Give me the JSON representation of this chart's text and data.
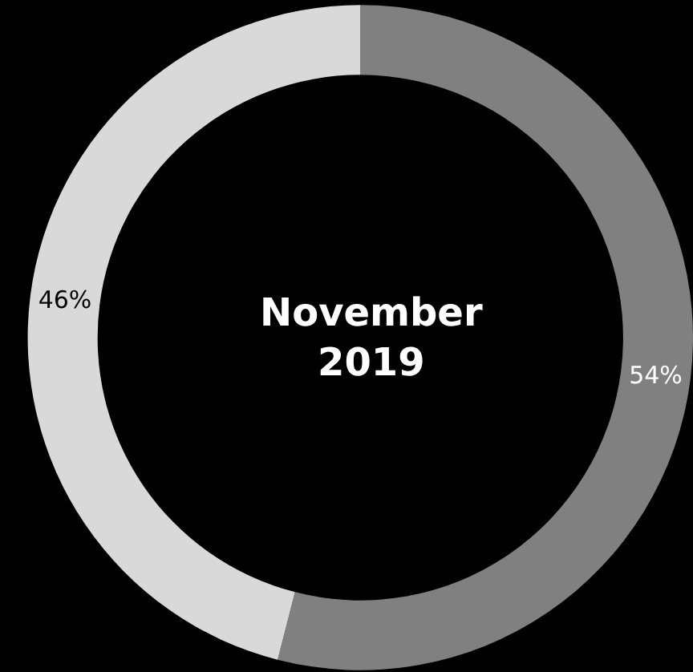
{
  "chart_data": {
    "type": "donut",
    "title": "November 2019",
    "categories": [
      null,
      null
    ],
    "values": [
      54,
      46
    ],
    "colors": [
      "#808080",
      "#d9d9d9"
    ],
    "value_labels": [
      "54%",
      "46%"
    ]
  }
}
